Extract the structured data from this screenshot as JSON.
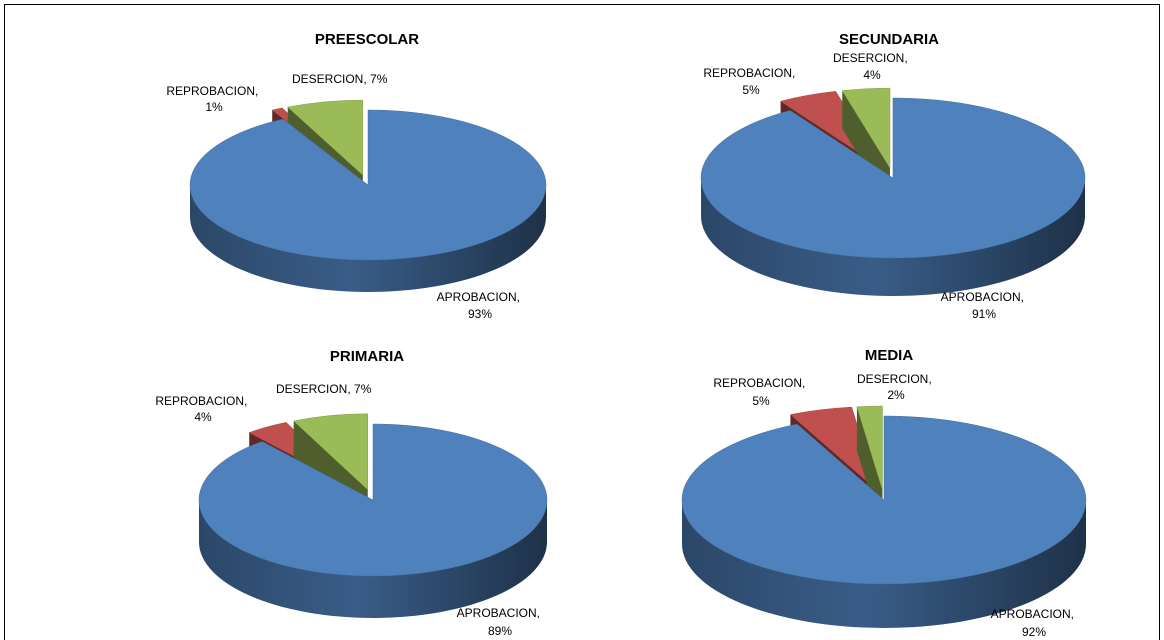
{
  "chart_data": [
    {
      "type": "pie",
      "title": "PREESCOLAR",
      "slices": [
        {
          "label": "APROBACION",
          "value": 93,
          "display": "93%",
          "color": "#4F81BD"
        },
        {
          "label": "REPROBACION",
          "value": 1,
          "display": "1%",
          "color": "#C0504D"
        },
        {
          "label": "DESERCION",
          "value": 7,
          "display": "7%",
          "color": "#9BBB59"
        }
      ]
    },
    {
      "type": "pie",
      "title": "SECUNDARIA",
      "slices": [
        {
          "label": "APROBACION",
          "value": 91,
          "display": "91%",
          "color": "#4F81BD"
        },
        {
          "label": "REPROBACION",
          "value": 5,
          "display": "5%",
          "color": "#C0504D"
        },
        {
          "label": "DESERCION",
          "value": 4,
          "display": "4%",
          "color": "#9BBB59"
        }
      ]
    },
    {
      "type": "pie",
      "title": "PRIMARIA",
      "slices": [
        {
          "label": "APROBACION",
          "value": 89,
          "display": "89%",
          "color": "#4F81BD"
        },
        {
          "label": "REPROBACION",
          "value": 4,
          "display": "4%",
          "color": "#C0504D"
        },
        {
          "label": "DESERCION",
          "value": 7,
          "display": "7%",
          "color": "#9BBB59"
        }
      ]
    },
    {
      "type": "pie",
      "title": "MEDIA",
      "slices": [
        {
          "label": "APROBACION",
          "value": 92,
          "display": "92%",
          "color": "#4F81BD"
        },
        {
          "label": "REPROBACION",
          "value": 5,
          "display": "5%",
          "color": "#C0504D"
        },
        {
          "label": "DESERCION",
          "value": 2,
          "display": "2%",
          "color": "#9BBB59"
        }
      ]
    }
  ]
}
